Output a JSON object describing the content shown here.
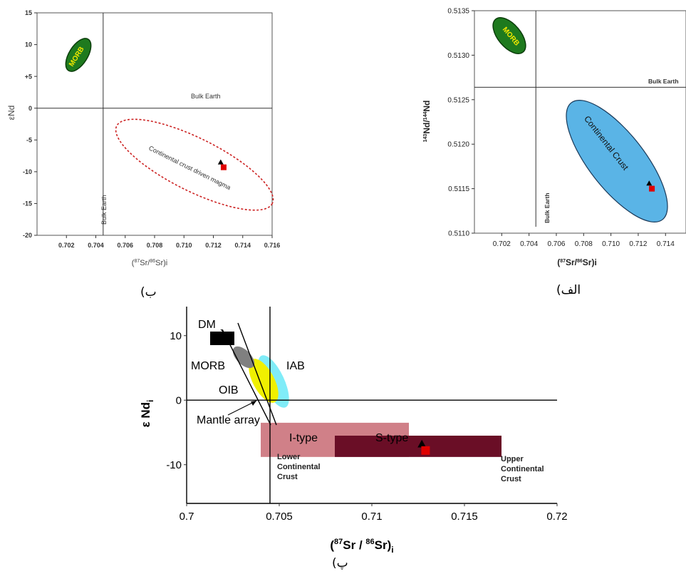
{
  "panel_labels": {
    "left": "ب)",
    "right": "الف)",
    "bottom": "پ)"
  },
  "chart_data": [
    {
      "type": "scatter",
      "panel": "left",
      "xlabel": "(87Sr/86Sr)i",
      "ylabel": "εNd",
      "xlim": [
        0.7,
        0.716
      ],
      "ylim": [
        -20,
        15
      ],
      "x_ticks": [
        0.702,
        0.704,
        0.706,
        0.708,
        0.71,
        0.712,
        0.714,
        0.716
      ],
      "x_tick_labels": [
        "0.702",
        "0.704",
        "0.706",
        "0.708",
        "0.710",
        "0.712",
        "0.714",
        "0.716"
      ],
      "y_ticks": [
        15,
        10,
        5,
        0,
        -5,
        -10,
        -15,
        -20
      ],
      "y_tick_labels": [
        "15",
        "10",
        "+5",
        "0",
        "-5",
        "-10",
        "-15",
        "-20"
      ],
      "bulk_earth": {
        "x": 0.7045,
        "y": 0,
        "label": "Bulk Earth"
      },
      "fields": [
        {
          "name": "MORB",
          "color": "#1e7a1e",
          "text_color": "#f0e800"
        },
        {
          "name": "Continental crust driven magma",
          "color": "#cc2222",
          "style": "dashed"
        }
      ],
      "points": [
        {
          "shape": "triangle",
          "color": "#000000",
          "x": 0.7125,
          "y": -8.5
        },
        {
          "shape": "square",
          "color": "#e00000",
          "x": 0.7127,
          "y": -9.3
        }
      ]
    },
    {
      "type": "scatter",
      "panel": "right",
      "xlabel": "(87Sr/86Sr)i",
      "ylabel": "143Nd/144Nd",
      "xlim": [
        0.7,
        0.7155
      ],
      "ylim": [
        0.511,
        0.5135
      ],
      "x_ticks": [
        0.702,
        0.704,
        0.706,
        0.708,
        0.71,
        0.712,
        0.714
      ],
      "x_tick_labels": [
        "0.702",
        "0.704",
        "0.706",
        "0.708",
        "0.710",
        "0.712",
        "0.714"
      ],
      "y_ticks": [
        0.5135,
        0.513,
        0.5125,
        0.512,
        0.5115,
        0.511
      ],
      "y_tick_labels": [
        "0.5135",
        "0.5130",
        "0.5125",
        "0.5120",
        "0.5115",
        "0.5110"
      ],
      "bulk_earth": {
        "x": 0.7045,
        "y": 0.51264,
        "label": "Bulk Earth"
      },
      "fields": [
        {
          "name": "MORB",
          "color": "#1e7a1e",
          "text_color": "#f0e800"
        },
        {
          "name": "Continental Crust",
          "color": "#5ab4e6"
        }
      ],
      "points": [
        {
          "shape": "triangle",
          "color": "#000000",
          "x": 0.7128,
          "y": 0.51156
        },
        {
          "shape": "square",
          "color": "#e00000",
          "x": 0.713,
          "y": 0.5115
        }
      ]
    },
    {
      "type": "scatter",
      "panel": "bottom",
      "xlabel": "(87Sr / 86Sr)i",
      "ylabel": "ε Ndi",
      "xlim": [
        0.7,
        0.72
      ],
      "ylim": [
        -16,
        14.5
      ],
      "x_ticks": [
        0.7,
        0.705,
        0.71,
        0.715,
        0.72
      ],
      "x_tick_labels": [
        "0.7",
        "0.705",
        "0.71",
        "0.715",
        "0.72"
      ],
      "y_ticks": [
        10,
        0,
        -10
      ],
      "y_tick_labels": [
        "10",
        "0",
        "-10"
      ],
      "bulk_earth": {
        "x": 0.7045,
        "y": 0
      },
      "fields": [
        {
          "name": "DM",
          "color": "#000000"
        },
        {
          "name": "MORB",
          "color": "#808080"
        },
        {
          "name": "OIB",
          "color": "#f0f000"
        },
        {
          "name": "IAB",
          "color": "#80ecf8"
        },
        {
          "name": "I-type",
          "color": "#d08088"
        },
        {
          "name": "S-type",
          "color": "#6a0e26"
        }
      ],
      "labels": {
        "mantle_array": "Mantle array",
        "lower_crust": [
          "Lower",
          "Continental",
          "Crust"
        ],
        "upper_crust": [
          "Upper",
          "Continental",
          "Crust"
        ]
      },
      "points": [
        {
          "shape": "triangle",
          "color": "#000000",
          "x": 0.7127,
          "y": -6.8
        },
        {
          "shape": "square",
          "color": "#e00000",
          "x": 0.7129,
          "y": -7.8
        }
      ]
    }
  ]
}
